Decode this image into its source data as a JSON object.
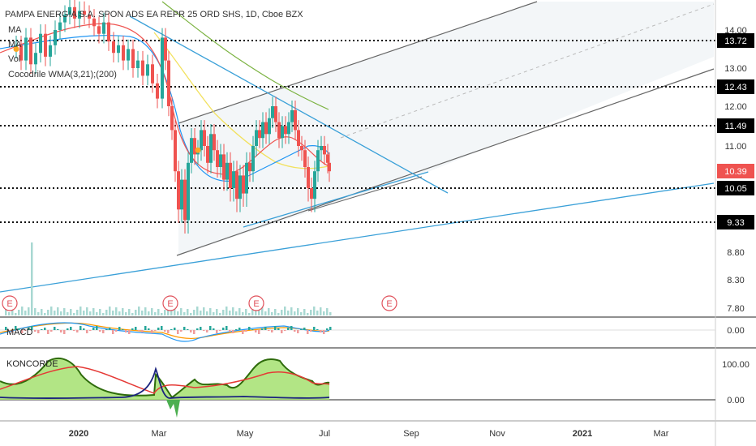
{
  "legend": {
    "title": "PAMPA ENERGIA S.A. SPON ADS EA REPR 25 ORD SHS, 1D, Cboe BZX",
    "lines": [
      "MA",
      "MA",
      "Vol",
      "Cocodrile WMA(3,21);(200)"
    ]
  },
  "panes": {
    "macd_label": "MACD",
    "koncorde_label": "KONCORDE"
  },
  "earnings_marker_text": "E",
  "colors": {
    "up": "#26a69a",
    "down": "#ef5350",
    "ma_yellow": "#f2e15e",
    "ma_green": "#7cb342",
    "ma_blue": "#2196f3",
    "trend_blue": "#3aa0d8",
    "channel": "#666666",
    "koncorde_fill": "#a5e070",
    "koncorde_line": "#2e6b0b",
    "koncorde_red": "#e53935",
    "koncorde_blue": "#1a237e",
    "current_tag": "#ef5350"
  },
  "chart_data": {
    "type": "candlestick",
    "title": "PAMPA ENERGIA S.A. SPON ADS EA REPR 25 ORD SHS, 1D, Cboe BZX",
    "y_ticks": [
      "14.00",
      "13.00",
      "12.00",
      "11.00",
      "10.00",
      "8.80",
      "8.30",
      "7.80"
    ],
    "x_ticks": [
      "2020",
      "Mar",
      "May",
      "Jul",
      "Sep",
      "Nov",
      "2021",
      "Mar"
    ],
    "horizontal_levels": [
      {
        "label": "13.72",
        "value": 13.72
      },
      {
        "label": "12.43",
        "value": 12.43
      },
      {
        "label": "11.49",
        "value": 11.49
      },
      {
        "label": "10.05",
        "value": 10.05
      },
      {
        "label": "9.33",
        "value": 9.33
      }
    ],
    "current_price": {
      "label": "10.39",
      "value": 10.39
    },
    "macd_ticks": [
      "0.00"
    ],
    "koncorde_ticks": [
      "100.00",
      "0.00"
    ],
    "series": [
      {
        "name": "close_path",
        "points": [
          [
            14.0,
            13.5
          ],
          [
            20,
            13.6
          ],
          [
            26,
            13.2
          ],
          [
            32,
            13.8
          ],
          [
            38,
            13.1
          ],
          [
            44,
            13.4
          ],
          [
            50,
            13.9
          ],
          [
            56,
            13.3
          ],
          [
            62,
            13.6
          ],
          [
            68,
            14.0
          ],
          [
            74,
            14.2
          ],
          [
            80,
            14.4
          ],
          [
            86,
            14.6
          ],
          [
            92,
            14.3
          ],
          [
            98,
            14.5
          ],
          [
            104,
            14.4
          ],
          [
            110,
            14.3
          ],
          [
            116,
            14.1
          ],
          [
            122,
            13.9
          ],
          [
            128,
            14.2
          ],
          [
            134,
            13.7
          ],
          [
            140,
            13.4
          ],
          [
            146,
            13.6
          ],
          [
            152,
            13.2
          ],
          [
            158,
            13.5
          ],
          [
            164,
            13.0
          ],
          [
            170,
            13.2
          ],
          [
            176,
            12.8
          ],
          [
            182,
            13.1
          ],
          [
            188,
            12.6
          ],
          [
            194,
            12.2
          ],
          [
            200,
            13.8
          ],
          [
            204,
            13.2
          ],
          [
            208,
            12.0
          ],
          [
            212,
            11.4
          ],
          [
            216,
            10.4
          ],
          [
            220,
            9.6
          ],
          [
            224,
            10.2
          ],
          [
            228,
            9.4
          ],
          [
            232,
            10.6
          ],
          [
            236,
            11.2
          ],
          [
            240,
            10.8
          ],
          [
            244,
            10.9
          ],
          [
            248,
            11.4
          ],
          [
            252,
            11.0
          ],
          [
            256,
            10.6
          ],
          [
            260,
            11.3
          ],
          [
            264,
            10.9
          ],
          [
            268,
            10.5
          ],
          [
            272,
            10.8
          ],
          [
            276,
            10.2
          ],
          [
            280,
            10.6
          ],
          [
            284,
            10.0
          ],
          [
            288,
            10.4
          ],
          [
            292,
            9.8
          ],
          [
            296,
            10.3
          ],
          [
            300,
            9.9
          ],
          [
            304,
            10.6
          ],
          [
            308,
            10.4
          ],
          [
            312,
            11.0
          ],
          [
            316,
            11.4
          ],
          [
            320,
            11.2
          ],
          [
            324,
            11.6
          ],
          [
            328,
            11.3
          ],
          [
            332,
            11.7
          ],
          [
            336,
            12.0
          ],
          [
            340,
            11.6
          ],
          [
            344,
            11.2
          ],
          [
            348,
            11.5
          ],
          [
            352,
            11.3
          ],
          [
            356,
            11.6
          ],
          [
            360,
            11.9
          ],
          [
            364,
            11.4
          ],
          [
            368,
            11.0
          ],
          [
            372,
            10.9
          ],
          [
            376,
            10.5
          ],
          [
            380,
            10.0
          ],
          [
            384,
            9.8
          ],
          [
            388,
            10.4
          ],
          [
            392,
            10.9
          ],
          [
            396,
            11.0
          ],
          [
            400,
            10.8
          ],
          [
            404,
            10.6
          ],
          [
            406,
            10.4
          ]
        ]
      }
    ]
  }
}
